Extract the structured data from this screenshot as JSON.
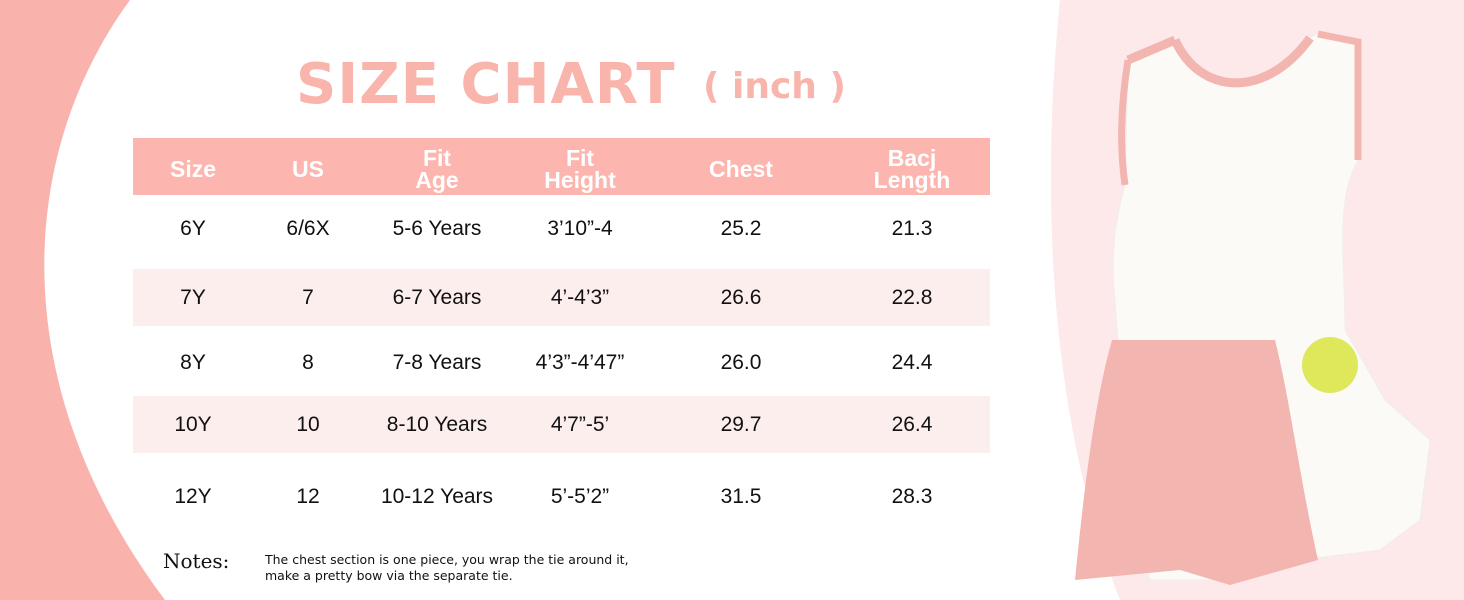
{
  "title": "SIZE CHART",
  "unit": "( inch )",
  "table": {
    "headers": [
      [
        "Size"
      ],
      [
        "US"
      ],
      [
        "Fit",
        "Age"
      ],
      [
        "Fit",
        "Height"
      ],
      [
        "Chest"
      ],
      [
        "Bacj",
        "Length"
      ]
    ],
    "rows": [
      [
        "6Y",
        "6/6X",
        "5-6 Years",
        "3’10”-4",
        "25.2",
        "21.3"
      ],
      [
        "7Y",
        "7",
        "6-7 Years",
        "4’-4’3”",
        "26.6",
        "22.8"
      ],
      [
        "8Y",
        "8",
        "7-8 Years",
        "4’3”-4’47”",
        "26.0",
        "24.4"
      ],
      [
        "10Y",
        "10",
        "8-10 Years",
        "4’7”-5’",
        "29.7",
        "26.4"
      ],
      [
        "12Y",
        "12",
        "10-12 Years",
        "5’-5’2”",
        "31.5",
        "28.3"
      ]
    ]
  },
  "notes": {
    "label": "Notes:",
    "line1": "The chest section is one piece, you wrap the tie around it,",
    "line2": "make a pretty bow via the separate tie."
  },
  "colors": {
    "accent": "#fdb6af",
    "row_alt": "#fdeeee",
    "bg_left": "#f9b2ac",
    "bg_right": "#fde9ea",
    "dress_pink": "#f3b5b0"
  },
  "product_image": "girls-tennis-dress-with-ball-pocket"
}
